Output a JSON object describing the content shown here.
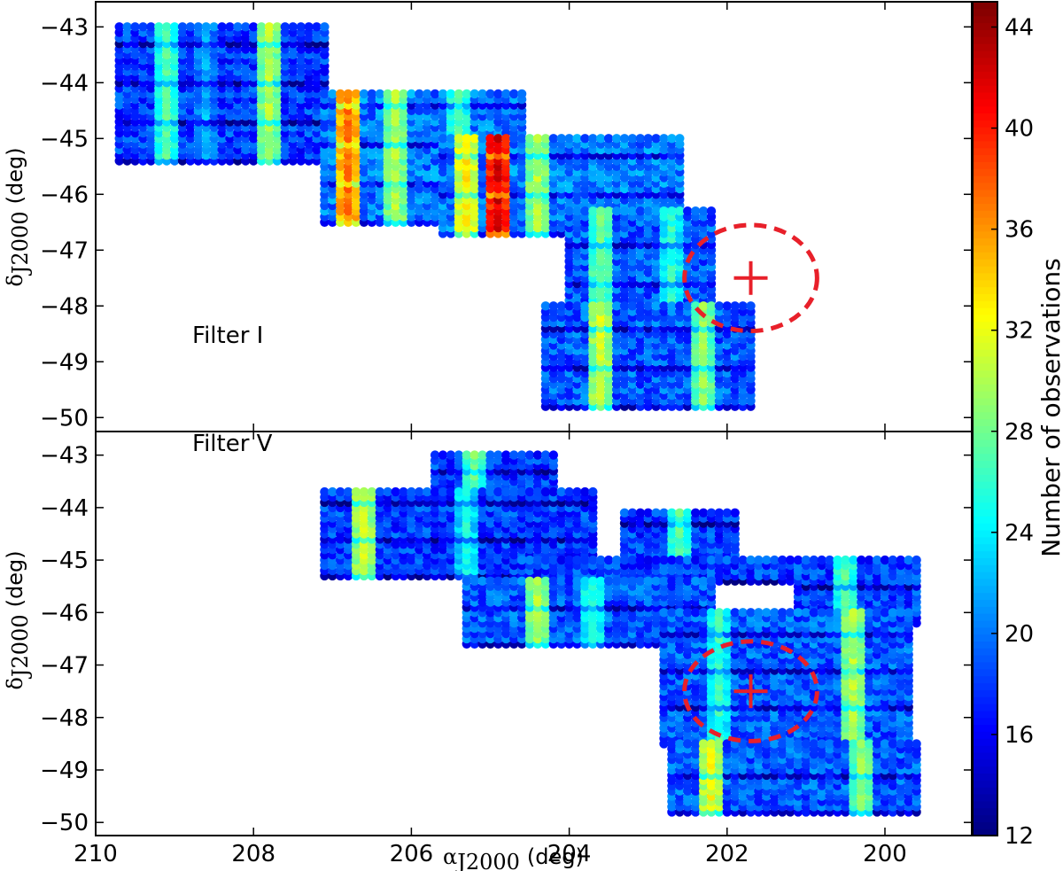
{
  "chart_data": {
    "type": "heatmap",
    "x_axis": {
      "label_main": "α",
      "label_sub": "J2000",
      "label_unit": "(deg)",
      "range": [
        210,
        198.9
      ],
      "ticks": [
        210,
        208,
        206,
        204,
        202,
        200
      ],
      "tick_labels": [
        "210",
        "208",
        "206",
        "204",
        "202",
        "200"
      ]
    },
    "colorbar": {
      "label": "Number of observations",
      "range": [
        12,
        45
      ],
      "ticks": [
        12,
        16,
        20,
        24,
        28,
        32,
        36,
        40,
        44
      ],
      "tick_labels": [
        "12",
        "16",
        "20",
        "24",
        "28",
        "32",
        "36",
        "40",
        "44"
      ],
      "colormap": "jet"
    },
    "panels": [
      {
        "id": "top",
        "annotation": "Filter I",
        "y_axis": {
          "label_main": "δ",
          "label_sub": "J2000",
          "label_unit": "(deg)",
          "range": [
            -50.25,
            -42.55
          ],
          "ticks": [
            -43,
            -44,
            -45,
            -46,
            -47,
            -48,
            -49,
            -50
          ],
          "tick_labels": [
            "−43",
            "−44",
            "−45",
            "−46",
            "−47",
            "−48",
            "−49",
            "−50"
          ]
        },
        "target_marker": {
          "ra": 201.7,
          "dec": -47.5,
          "radius_ra": 1.4,
          "radius_dec": 0.95
        },
        "fields": [
          {
            "ra": [
              209.7,
              207.1
            ],
            "dec": [
              -45.4,
              -43.0
            ],
            "base": 18,
            "hot": [
              {
                "ra": 209.1,
                "v": 27
              },
              {
                "ra": 208.6,
                "v": 22
              },
              {
                "ra": 207.8,
                "v": 30
              }
            ]
          },
          {
            "ra": [
              207.1,
              204.6
            ],
            "dec": [
              -46.5,
              -44.2
            ],
            "base": 20,
            "hot": [
              {
                "ra": 206.8,
                "v": 37
              },
              {
                "ra": 206.2,
                "v": 30
              },
              {
                "ra": 205.4,
                "v": 27
              }
            ]
          },
          {
            "ra": [
              205.6,
              202.6
            ],
            "dec": [
              -46.7,
              -45.0
            ],
            "base": 20,
            "hot": [
              {
                "ra": 204.9,
                "v": 42
              },
              {
                "ra": 205.3,
                "v": 33
              },
              {
                "ra": 204.4,
                "v": 30
              }
            ]
          },
          {
            "ra": [
              204.0,
              202.2
            ],
            "dec": [
              -48.3,
              -46.3
            ],
            "base": 19,
            "hot": [
              {
                "ra": 203.6,
                "v": 28
              },
              {
                "ra": 202.7,
                "v": 26
              }
            ]
          },
          {
            "ra": [
              204.3,
              201.7
            ],
            "dec": [
              -49.8,
              -48.0
            ],
            "base": 19,
            "hot": [
              {
                "ra": 203.6,
                "v": 31
              },
              {
                "ra": 202.3,
                "v": 29
              }
            ]
          }
        ]
      },
      {
        "id": "bottom",
        "annotation": "Filter V",
        "y_axis": {
          "label_main": "δ",
          "label_sub": "J2000",
          "label_unit": "(deg)",
          "range": [
            -50.25,
            -42.55
          ],
          "ticks": [
            -43,
            -44,
            -45,
            -46,
            -47,
            -48,
            -49,
            -50
          ],
          "tick_labels": [
            "−43",
            "−44",
            "−45",
            "−46",
            "−47",
            "−48",
            "−49",
            "−50"
          ]
        },
        "target_marker": {
          "ra": 201.7,
          "dec": -47.5,
          "radius_ra": 1.4,
          "radius_dec": 0.95
        },
        "fields": [
          {
            "ra": [
              205.7,
              204.2
            ],
            "dec": [
              -44.0,
              -43.0
            ],
            "base": 18,
            "hot": [
              {
                "ra": 205.2,
                "v": 28
              }
            ]
          },
          {
            "ra": [
              207.1,
              203.7
            ],
            "dec": [
              -45.3,
              -43.7
            ],
            "base": 18,
            "hot": [
              {
                "ra": 206.6,
                "v": 31
              },
              {
                "ra": 205.3,
                "v": 25
              }
            ]
          },
          {
            "ra": [
              203.3,
              201.9
            ],
            "dec": [
              -45.0,
              -44.1
            ],
            "base": 18,
            "hot": [
              {
                "ra": 202.6,
                "v": 27
              }
            ]
          },
          {
            "ra": [
              204.6,
              201.2
            ],
            "dec": [
              -45.4,
              -45.0
            ],
            "base": 18,
            "hot": []
          },
          {
            "ra": [
              205.3,
              202.2
            ],
            "dec": [
              -46.6,
              -45.4
            ],
            "base": 19,
            "hot": [
              {
                "ra": 204.4,
                "v": 30
              },
              {
                "ra": 203.7,
                "v": 26
              }
            ]
          },
          {
            "ra": [
              201.1,
              199.6
            ],
            "dec": [
              -46.2,
              -45.0
            ],
            "base": 18,
            "hot": [
              {
                "ra": 200.5,
                "v": 27
              }
            ]
          },
          {
            "ra": [
              202.8,
              199.7
            ],
            "dec": [
              -48.5,
              -46.0
            ],
            "base": 19,
            "hot": [
              {
                "ra": 200.4,
                "v": 30
              },
              {
                "ra": 202.1,
                "v": 26
              }
            ]
          },
          {
            "ra": [
              202.7,
              199.6
            ],
            "dec": [
              -49.8,
              -48.5
            ],
            "base": 19,
            "hot": [
              {
                "ra": 202.2,
                "v": 32
              },
              {
                "ra": 200.3,
                "v": 29
              }
            ]
          }
        ]
      }
    ]
  }
}
